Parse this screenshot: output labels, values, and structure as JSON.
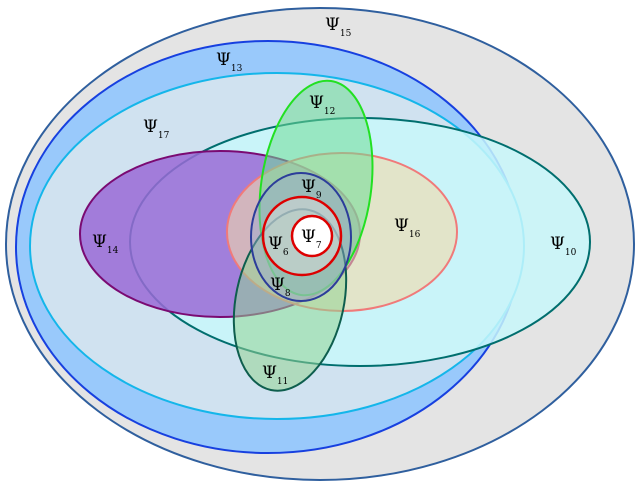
{
  "sets": [
    {
      "id": "psi15",
      "symbol": "Ψ",
      "index": "15",
      "fill": "#e4e4e4",
      "fill_opacity": 1,
      "stroke": "#2f5f9e"
    },
    {
      "id": "psi13",
      "symbol": "Ψ",
      "index": "13",
      "fill": "#99c9fb",
      "fill_opacity": 1,
      "stroke": "#1740e0"
    },
    {
      "id": "psi17",
      "symbol": "Ψ",
      "index": "17",
      "fill": "#d0e2f0",
      "fill_opacity": 1,
      "stroke": "#14b6ea"
    },
    {
      "id": "psi10",
      "symbol": "Ψ",
      "index": "10",
      "fill": "#c8f7fa",
      "fill_opacity": 0.85,
      "stroke": "#006e6e"
    },
    {
      "id": "psi14",
      "symbol": "Ψ",
      "index": "14",
      "fill": "#9a6ad6",
      "fill_opacity": 0.85,
      "stroke": "#7a0a72"
    },
    {
      "id": "psi16",
      "symbol": "Ψ",
      "index": "16",
      "fill": "#f3d9a9",
      "fill_opacity": 0.6,
      "stroke": "#f07a7a"
    },
    {
      "id": "psi12",
      "symbol": "Ψ",
      "index": "12",
      "fill": "#6fdc96",
      "fill_opacity": 0.55,
      "stroke": "#22e022"
    },
    {
      "id": "psi11",
      "symbol": "Ψ",
      "index": "11",
      "fill": "#94d394",
      "fill_opacity": 0.55,
      "stroke": "#0e5e4e"
    },
    {
      "id": "psi9",
      "symbol": "Ψ",
      "index": "9",
      "fill": "#9aa9d0",
      "fill_opacity": 0.45,
      "stroke": "#2c3d9a"
    },
    {
      "id": "psi8",
      "symbol": "Ψ",
      "index": "8",
      "fill": "#9aa9d0",
      "fill_opacity": 0.0,
      "stroke": "#2c3d9a"
    },
    {
      "id": "psi6",
      "symbol": "Ψ",
      "index": "6",
      "fill": "#dcdcdc",
      "fill_opacity": 0.5,
      "stroke": "#dd0000"
    },
    {
      "id": "psi7",
      "symbol": "Ψ",
      "index": "7",
      "fill": "#ffffff",
      "fill_opacity": 1,
      "stroke": "#dd0000"
    }
  ]
}
